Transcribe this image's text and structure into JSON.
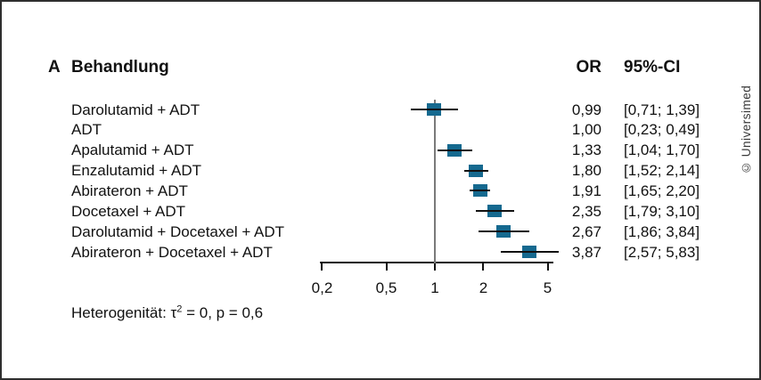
{
  "figure": {
    "panel_label": "A",
    "column_headers": {
      "treatment": "Behandlung",
      "or": "OR",
      "ci": "95%-CI"
    },
    "footnote": {
      "prefix": "Heterogenität: τ",
      "sup": "2",
      "suffix": " = 0, p = 0,6"
    },
    "watermark": "© Universimed"
  },
  "chart_data": {
    "type": "forest",
    "effect_measure": "OR",
    "x_scale": "log",
    "x_ticks": [
      0.2,
      0.5,
      1,
      2,
      5
    ],
    "x_tick_labels": [
      "0,2",
      "0,5",
      "1",
      "2",
      "5"
    ],
    "x_range": [
      0.2,
      5
    ],
    "reference_line": 1,
    "marker_color": "#15698f",
    "line_color": "#111111",
    "reference_line_color": "#7a7a7a",
    "rows": [
      {
        "label": "Darolutamid + ADT",
        "or": 0.99,
        "ci_low": 0.71,
        "ci_high": 1.39,
        "or_text": "0,99",
        "ci_text": "[0,71; 1,39]",
        "marker": true
      },
      {
        "label": "ADT",
        "or": 1.0,
        "ci_low": 0.23,
        "ci_high": 0.49,
        "or_text": "1,00",
        "ci_text": "[0,23; 0,49]",
        "marker": false
      },
      {
        "label": "Apalutamid + ADT",
        "or": 1.33,
        "ci_low": 1.04,
        "ci_high": 1.7,
        "or_text": "1,33",
        "ci_text": "[1,04; 1,70]",
        "marker": true
      },
      {
        "label": "Enzalutamid + ADT",
        "or": 1.8,
        "ci_low": 1.52,
        "ci_high": 2.14,
        "or_text": "1,80",
        "ci_text": "[1,52; 2,14]",
        "marker": true
      },
      {
        "label": "Abirateron + ADT",
        "or": 1.91,
        "ci_low": 1.65,
        "ci_high": 2.2,
        "or_text": "1,91",
        "ci_text": "[1,65; 2,20]",
        "marker": true
      },
      {
        "label": "Docetaxel + ADT",
        "or": 2.35,
        "ci_low": 1.79,
        "ci_high": 3.1,
        "or_text": "2,35",
        "ci_text": "[1,79; 3,10]",
        "marker": true
      },
      {
        "label": "Darolutamid + Docetaxel + ADT",
        "or": 2.67,
        "ci_low": 1.86,
        "ci_high": 3.84,
        "or_text": "2,67",
        "ci_text": "[1,86; 3,84]",
        "marker": true
      },
      {
        "label": "Abirateron + Docetaxel + ADT",
        "or": 3.87,
        "ci_low": 2.57,
        "ci_high": 5.83,
        "or_text": "3,87",
        "ci_text": "[2,57; 5,83]",
        "marker": true
      }
    ],
    "heterogeneity": "Heterogenität: τ² = 0, p = 0,6"
  }
}
